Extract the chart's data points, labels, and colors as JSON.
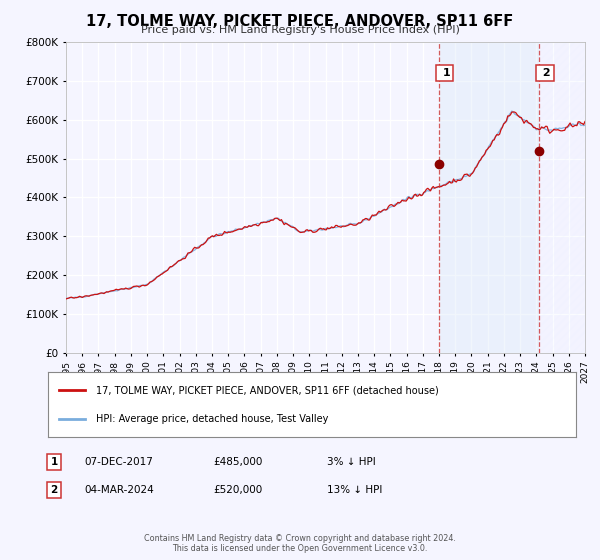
{
  "title": "17, TOLME WAY, PICKET PIECE, ANDOVER, SP11 6FF",
  "subtitle": "Price paid vs. HM Land Registry's House Price Index (HPI)",
  "ylim": [
    0,
    800000
  ],
  "xlim_start": 1995,
  "xlim_end": 2027,
  "background_color": "#f5f5ff",
  "plot_bg": "#f5f5ff",
  "grid_color": "#ffffff",
  "sale1_date": "07-DEC-2017",
  "sale1_price": 485000,
  "sale1_label": "1",
  "sale1_pct": "3% ↓ HPI",
  "sale2_date": "04-MAR-2024",
  "sale2_price": 520000,
  "sale2_label": "2",
  "sale2_pct": "13% ↓ HPI",
  "sale1_x": 2018.0,
  "sale2_x": 2024.17,
  "legend_line1": "17, TOLME WAY, PICKET PIECE, ANDOVER, SP11 6FF (detached house)",
  "legend_line2": "HPI: Average price, detached house, Test Valley",
  "footer": "Contains HM Land Registry data © Crown copyright and database right 2024.\nThis data is licensed under the Open Government Licence v3.0.",
  "hpi_color": "#7aaddd",
  "price_color": "#cc1111",
  "vline_color": "#cc3333",
  "marker_color": "#8b0000",
  "shade1_color": "#d8e8f8",
  "shade2_color": "#e8eeff"
}
